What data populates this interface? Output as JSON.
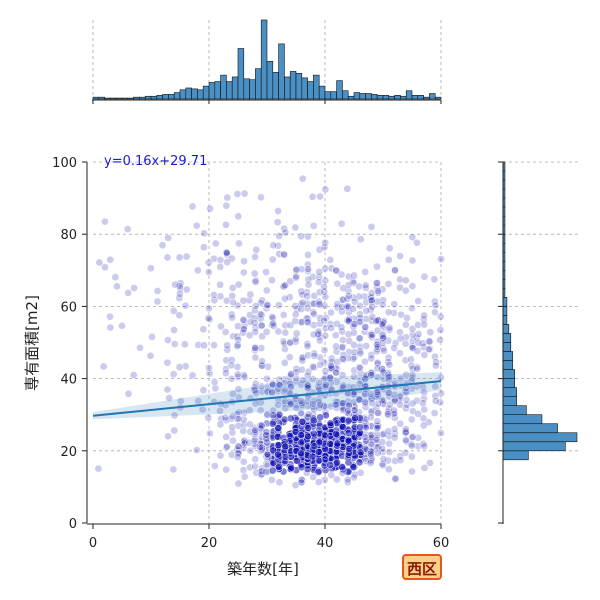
{
  "chart_data": {
    "type": "scatter",
    "xlabel": "築年数[年]",
    "ylabel": "専有面積[m2]",
    "xlim": [
      0,
      60
    ],
    "ylim": [
      0,
      100
    ],
    "x_ticks": [
      "0",
      "20",
      "40",
      "60"
    ],
    "y_ticks": [
      "0",
      "20",
      "40",
      "60",
      "80",
      "100"
    ],
    "grid": true,
    "regression": {
      "label": "y=0.16x+29.71",
      "slope": 0.16,
      "intercept": 29.71
    },
    "region_badge": "西区",
    "point_color": "#1010b0",
    "line_color": "#1f77b4",
    "hist_color": "#4a90c4",
    "hist_x": {
      "bin_width": 2,
      "counts": [
        2,
        2,
        1,
        1,
        1,
        1,
        1,
        2,
        2,
        3,
        3,
        4,
        5,
        5,
        7,
        10,
        12,
        11,
        10,
        14,
        18,
        19,
        26,
        19,
        24,
        55,
        22,
        21,
        33,
        86,
        41,
        29,
        60,
        24,
        30,
        28,
        23,
        19,
        26,
        14,
        8,
        8,
        20,
        9,
        3,
        7,
        6,
        6,
        5,
        4,
        4,
        3,
        4,
        3,
        9,
        4,
        4,
        2,
        6,
        2
      ]
    },
    "hist_y": {
      "bin_width": 2.5,
      "counts": [
        0,
        0,
        0,
        0,
        0,
        0,
        0,
        13,
        32,
        38,
        28,
        20,
        12,
        7,
        7,
        6,
        6,
        5,
        5,
        4,
        4,
        3,
        2,
        2,
        2,
        1,
        1,
        1,
        1,
        1,
        1,
        1,
        1,
        1,
        1,
        1,
        1,
        1,
        1,
        1
      ]
    }
  }
}
